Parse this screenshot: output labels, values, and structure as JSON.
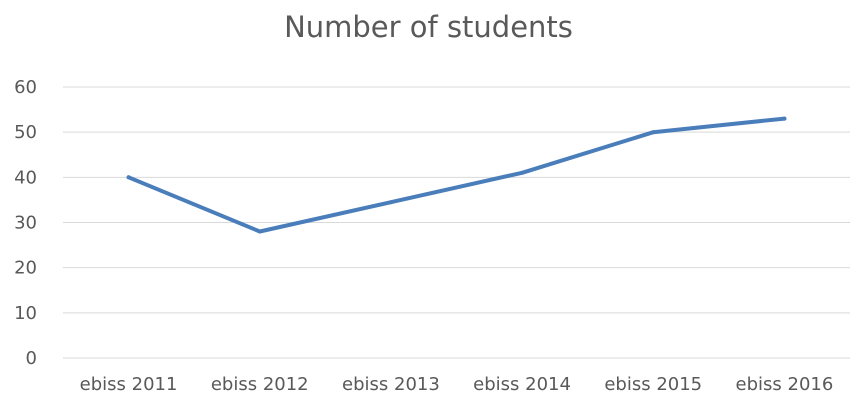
{
  "chart_data": {
    "type": "line",
    "title": "Number of students",
    "xlabel": "",
    "ylabel": "",
    "categories": [
      "ebiss 2011",
      "ebiss 2012",
      "ebiss 2013",
      "ebiss 2014",
      "ebiss 2015",
      "ebiss 2016"
    ],
    "series": [
      {
        "values": [
          40,
          28,
          34.5,
          41,
          50,
          53
        ]
      }
    ],
    "ylim": [
      0,
      60
    ],
    "yticks": [
      0,
      10,
      20,
      30,
      40,
      50,
      60
    ],
    "grid": true,
    "legend": "none",
    "colors": {
      "series": "#4a7ebb",
      "grid": "#d9d9d9",
      "text": "#595959"
    }
  }
}
